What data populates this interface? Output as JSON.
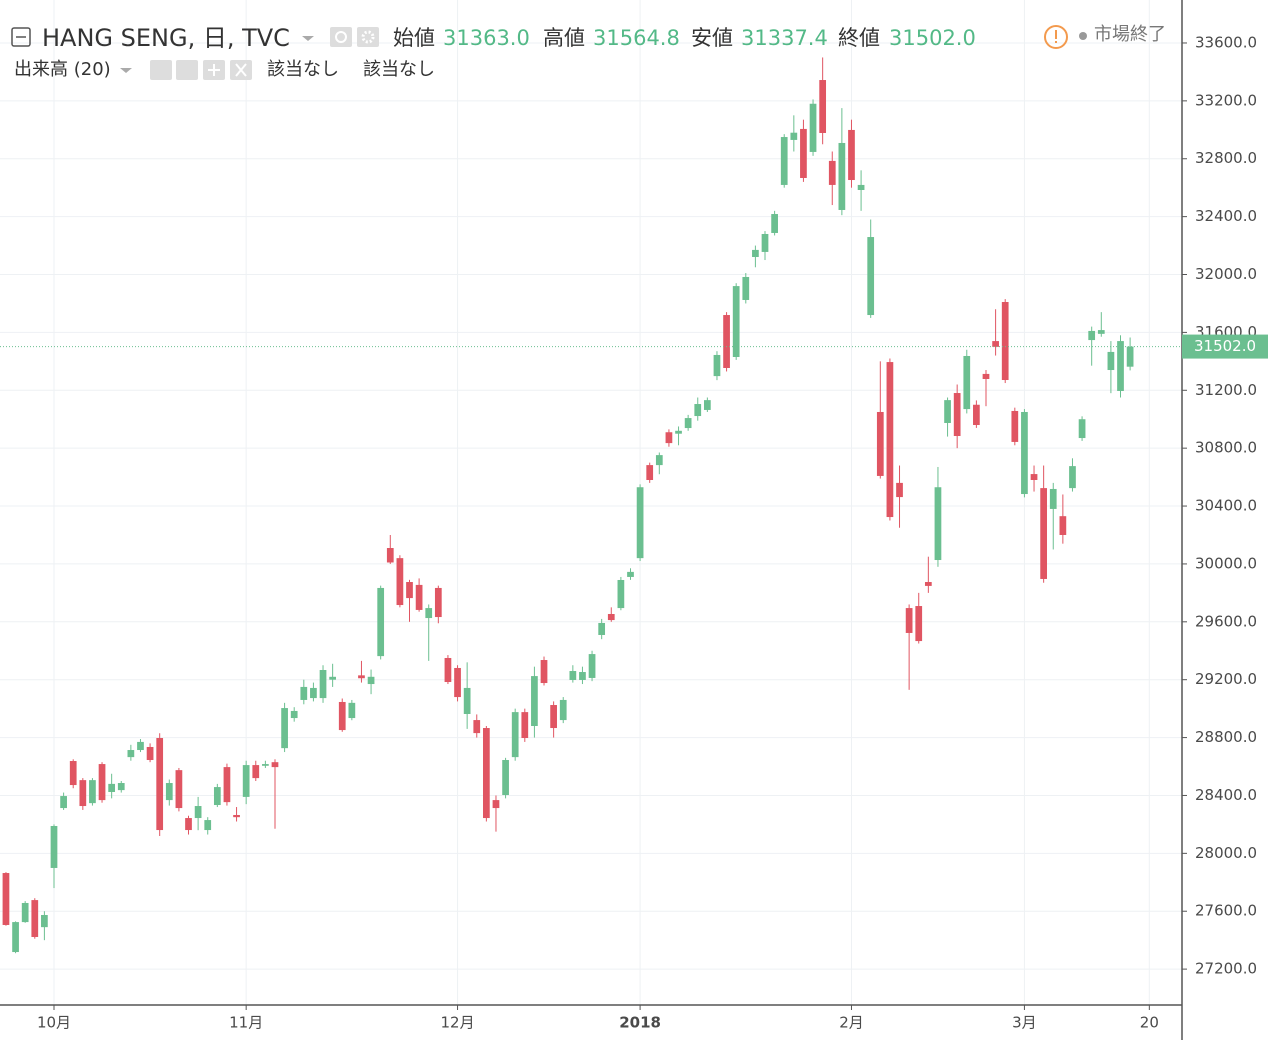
{
  "chart_data": {
    "type": "candlestick",
    "title": "HANG SENG, 日, TVC",
    "ohlc_header": [
      {
        "name": "始値",
        "value": 31363.0,
        "label": "31363.0"
      },
      {
        "name": "高値",
        "value": 31564.8,
        "label": "31564.8"
      },
      {
        "name": "安値",
        "value": 31337.4,
        "label": "31337.4"
      },
      {
        "name": "終値",
        "value": 31502.0,
        "label": "31502.0"
      }
    ],
    "volume_label": "出来高 (20)",
    "volume_values": [
      "該当なし",
      "該当なし"
    ],
    "status": "市場終了",
    "up_color": "#6bbf90",
    "down_color": "#e05562",
    "grid": true,
    "open": [
      27864,
      27318,
      27525,
      27677,
      27490,
      27899,
      28313,
      28638,
      28506,
      28347,
      28617,
      28424,
      28437,
      28665,
      28714,
      28735,
      28797,
      28368,
      28575,
      28244,
      28244,
      28161,
      28334,
      28596,
      28265,
      28390,
      28610,
      28605,
      28630,
      28727,
      28935,
      29060,
      29073,
      29073,
      29200,
      29046,
      28935,
      29230,
      29170,
      29363,
      30110,
      30040,
      29875,
      29855,
      29626,
      29834,
      29350,
      29281,
      28963,
      28921,
      28866,
      28368,
      28403,
      28665,
      28976,
      28880,
      29336,
      29025,
      28921,
      29198,
      29198,
      29212,
      29509,
      29654,
      29695,
      29910,
      30040,
      30683,
      30683,
      30910,
      30900,
      30939,
      31022,
      31064,
      31298,
      31720,
      31430,
      31824,
      32121,
      32156,
      32287,
      32619,
      32930,
      33006,
      32847,
      33344,
      32785,
      32446,
      32999,
      32584,
      31720,
      31050,
      31395,
      30560,
      29695,
      29709,
      29875,
      30027,
      30974,
      31181,
      31070,
      31100,
      31313,
      31540,
      31810,
      31057,
      30483,
      30621,
      30524,
      30380,
      30330,
      30524,
      30870,
      31547,
      31590,
      31340,
      31195,
      31363
    ],
    "high": [
      27870,
      27530,
      27670,
      27690,
      27600,
      28200,
      28420,
      28650,
      28520,
      28520,
      28630,
      28550,
      28500,
      28750,
      28790,
      28760,
      28830,
      28510,
      28590,
      28260,
      28390,
      28250,
      28480,
      28620,
      28320,
      28640,
      28640,
      28640,
      28650,
      29040,
      29010,
      29200,
      29180,
      29300,
      29310,
      29070,
      29060,
      29330,
      29270,
      29850,
      30200,
      30060,
      29890,
      29900,
      29720,
      29850,
      29370,
      29300,
      29320,
      28960,
      28880,
      28400,
      28660,
      29000,
      29000,
      29290,
      29360,
      29050,
      29080,
      29300,
      29290,
      29400,
      29620,
      29700,
      29910,
      29970,
      30550,
      30700,
      30770,
      30930,
      30950,
      31030,
      31150,
      31150,
      31470,
      31740,
      31940,
      32010,
      32200,
      32300,
      32440,
      32970,
      33100,
      33070,
      33210,
      33500,
      32850,
      33150,
      33070,
      32720,
      32380,
      31400,
      31420,
      30680,
      29720,
      29800,
      30050,
      30670,
      31150,
      31240,
      31480,
      31130,
      31340,
      31760,
      31830,
      31080,
      31070,
      30680,
      30680,
      30560,
      30480,
      30730,
      31020,
      31640,
      31740,
      31540,
      31580,
      31564.8
    ],
    "low": [
      27500,
      27310,
      27520,
      27410,
      27400,
      27760,
      28300,
      28450,
      28300,
      28330,
      28350,
      28380,
      28420,
      28640,
      28700,
      28630,
      28120,
      28330,
      28290,
      28130,
      28160,
      28130,
      28320,
      28330,
      28220,
      28340,
      28500,
      28590,
      28170,
      28700,
      28910,
      29030,
      29050,
      29040,
      29150,
      28840,
      28920,
      29180,
      29100,
      29340,
      30000,
      29700,
      29600,
      29670,
      29330,
      29590,
      29170,
      29050,
      28860,
      28800,
      28220,
      28150,
      28380,
      28640,
      28770,
      28800,
      29160,
      28800,
      28900,
      29180,
      29170,
      29190,
      29480,
      29600,
      29680,
      29890,
      30020,
      30560,
      30620,
      30810,
      30820,
      30920,
      30990,
      31050,
      31270,
      31330,
      31410,
      31800,
      32050,
      32100,
      32270,
      32600,
      32850,
      32640,
      32820,
      32900,
      32480,
      32410,
      32600,
      32440,
      31700,
      30590,
      30300,
      30250,
      29130,
      29450,
      29800,
      29980,
      30880,
      30800,
      31040,
      30940,
      31090,
      31440,
      31250,
      30820,
      30460,
      30500,
      29870,
      30100,
      30140,
      30500,
      30850,
      31370,
      31570,
      31180,
      31150,
      31337.4
    ],
    "close": [
      27505,
      27525,
      27657,
      27422,
      27574,
      28189,
      28396,
      28472,
      28327,
      28506,
      28368,
      28480,
      28486,
      28714,
      28770,
      28645,
      28161,
      28486,
      28313,
      28161,
      28327,
      28230,
      28458,
      28354,
      28250,
      28610,
      28520,
      28617,
      28596,
      29004,
      28984,
      29150,
      29143,
      29267,
      29220,
      28852,
      29040,
      29210,
      29220,
      29834,
      30010,
      29716,
      29764,
      29682,
      29695,
      29633,
      29184,
      29080,
      29143,
      28831,
      28244,
      28313,
      28645,
      28976,
      28797,
      29225,
      29177,
      28866,
      29060,
      29260,
      29253,
      29377,
      29592,
      29612,
      29889,
      29945,
      30530,
      30580,
      30752,
      30835,
      30920,
      31008,
      31105,
      31132,
      31444,
      31354,
      31920,
      31983,
      32170,
      32280,
      32418,
      32950,
      32980,
      32667,
      33180,
      32978,
      32619,
      32909,
      32653,
      32619,
      32259,
      30608,
      30324,
      30462,
      29523,
      29467,
      29848,
      30530,
      31132,
      30884,
      31437,
      30960,
      31278,
      31500,
      31271,
      30843,
      31050,
      30580,
      29896,
      30518,
      30200,
      30676,
      31000,
      31610,
      31616,
      31465,
      31540,
      31502
    ],
    "xlim": [
      -0.62,
      122.4
    ],
    "xticks": [
      {
        "value": 5,
        "label": "10月"
      },
      {
        "value": 25,
        "label": "11月"
      },
      {
        "value": 47,
        "label": "12月"
      },
      {
        "value": 66,
        "label": "2018"
      },
      {
        "value": 88,
        "label": "2月"
      },
      {
        "value": 106,
        "label": "3月"
      },
      {
        "value": 119,
        "label": "20"
      }
    ],
    "ylim": [
      26952,
      33897
    ],
    "yticks": [
      {
        "value": 27200,
        "label": "27200.0"
      },
      {
        "value": 27600,
        "label": "27600.0"
      },
      {
        "value": 28000,
        "label": "28000.0"
      },
      {
        "value": 28400,
        "label": "28400.0"
      },
      {
        "value": 28800,
        "label": "28800.0"
      },
      {
        "value": 29200,
        "label": "29200.0"
      },
      {
        "value": 29600,
        "label": "29600.0"
      },
      {
        "value": 30000,
        "label": "30000.0"
      },
      {
        "value": 30400,
        "label": "30400.0"
      },
      {
        "value": 30800,
        "label": "30800.0"
      },
      {
        "value": 31200,
        "label": "31200.0"
      },
      {
        "value": 31600,
        "label": "31600.0"
      },
      {
        "value": 32000,
        "label": "32000.0"
      },
      {
        "value": 32400,
        "label": "32400.0"
      },
      {
        "value": 32800,
        "label": "32800.0"
      },
      {
        "value": 33200,
        "label": "33200.0"
      },
      {
        "value": 33600,
        "label": "33600.0"
      }
    ],
    "last_price": {
      "value": 31502.0,
      "label": "31502.0"
    }
  }
}
